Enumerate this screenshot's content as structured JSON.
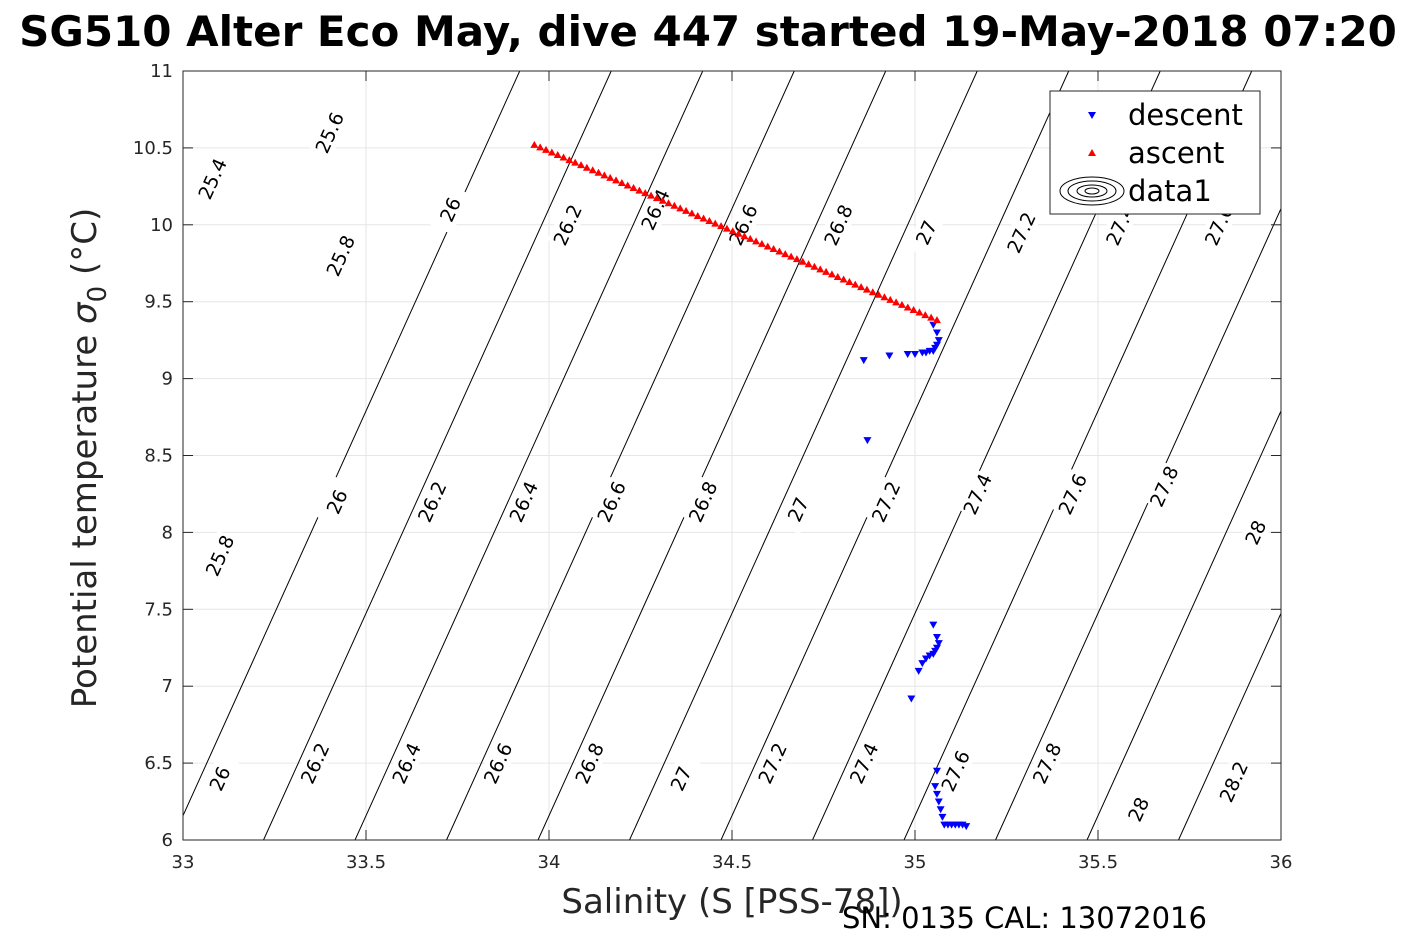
{
  "chart_data": {
    "type": "scatter",
    "title": "SG510 Alter Eco May, dive 447 started 19-May-2018 07:20",
    "xlabel": "Salinity (S [PSS-78])",
    "ylabel_prefix": "Potential temperature ",
    "ylabel_sigma": "σ",
    "ylabel_sub": "0",
    "ylabel_suffix": " (°C)",
    "footer": "SN: 0135  CAL: 13072016",
    "xlim": [
      33,
      36
    ],
    "ylim": [
      6,
      11
    ],
    "xticks": [
      33,
      33.5,
      34,
      34.5,
      35,
      35.5,
      36
    ],
    "xtick_labels": [
      "33",
      "33.5",
      "34",
      "34.5",
      "35",
      "35.5",
      "36"
    ],
    "yticks": [
      6,
      6.5,
      7,
      7.5,
      8,
      8.5,
      9,
      9.5,
      10,
      10.5,
      11
    ],
    "ytick_labels": [
      "6",
      "6.5",
      "7",
      "7.5",
      "8",
      "8.5",
      "9",
      "9.5",
      "10",
      "10.5",
      "11"
    ],
    "grid": true,
    "legend_position": "top-right",
    "legend": [
      {
        "label": "descent",
        "marker": "triangle-down",
        "color": "#0000ff"
      },
      {
        "label": "ascent",
        "marker": "triangle-up",
        "color": "#ff0000"
      },
      {
        "label": "data1",
        "marker": "contour-ellipses",
        "color": "#000000"
      }
    ],
    "series": [
      {
        "name": "descent",
        "marker": "triangle-down",
        "color": "#0000ff",
        "x": [
          35.05,
          35.06,
          35.065,
          35.06,
          35.055,
          35.05,
          35.04,
          35.03,
          35.02,
          35.0,
          34.98,
          34.93,
          34.86,
          34.87,
          35.05,
          35.06,
          35.065,
          35.06,
          35.055,
          35.05,
          35.04,
          35.03,
          35.02,
          35.01,
          34.99,
          35.06,
          35.055,
          35.06,
          35.065,
          35.07,
          35.075,
          35.08,
          35.09,
          35.1,
          35.11,
          35.12,
          35.13,
          35.14
        ],
        "y": [
          9.35,
          9.3,
          9.25,
          9.22,
          9.2,
          9.18,
          9.18,
          9.17,
          9.17,
          9.16,
          9.16,
          9.15,
          9.12,
          8.6,
          7.4,
          7.32,
          7.28,
          7.25,
          7.23,
          7.21,
          7.2,
          7.18,
          7.15,
          7.1,
          6.92,
          6.45,
          6.35,
          6.3,
          6.25,
          6.2,
          6.15,
          6.1,
          6.1,
          6.1,
          6.1,
          6.1,
          6.1,
          6.09
        ]
      },
      {
        "name": "ascent",
        "marker": "triangle-up",
        "color": "#ff0000",
        "x_start": 33.96,
        "y_start": 10.52,
        "x_end": 35.06,
        "y_end": 9.38,
        "n_points": 70
      }
    ],
    "contours": [
      {
        "level": "25.4",
        "x_at_6": 31.22,
        "labels": [
          [
            33.08,
            10.3
          ]
        ]
      },
      {
        "level": "25.6",
        "x_at_6": 31.47,
        "labels": [
          [
            33.4,
            10.6
          ]
        ]
      },
      {
        "level": "25.8",
        "x_at_6": 31.72,
        "labels": [
          [
            33.43,
            9.8
          ],
          [
            33.1,
            7.85
          ]
        ]
      },
      {
        "level": "26",
        "x_at_6": 32.97,
        "labels": [
          [
            33.73,
            10.1
          ],
          [
            33.42,
            8.2
          ],
          [
            33.1,
            6.4
          ]
        ]
      },
      {
        "level": "26.2",
        "x_at_6": 33.22,
        "labels": [
          [
            34.05,
            10.0
          ],
          [
            33.68,
            8.2
          ],
          [
            33.36,
            6.5
          ]
        ]
      },
      {
        "level": "26.4",
        "x_at_6": 33.47,
        "labels": [
          [
            34.29,
            10.1
          ],
          [
            33.93,
            8.2
          ],
          [
            33.61,
            6.5
          ]
        ]
      },
      {
        "level": "26.6",
        "x_at_6": 33.72,
        "labels": [
          [
            34.53,
            10.0
          ],
          [
            34.17,
            8.2
          ],
          [
            33.86,
            6.5
          ]
        ]
      },
      {
        "level": "26.8",
        "x_at_6": 33.97,
        "labels": [
          [
            34.79,
            10.0
          ],
          [
            34.42,
            8.2
          ],
          [
            34.11,
            6.5
          ]
        ]
      },
      {
        "level": "27",
        "x_at_6": 34.22,
        "labels": [
          [
            35.03,
            9.95
          ],
          [
            34.68,
            8.15
          ],
          [
            34.36,
            6.4
          ]
        ]
      },
      {
        "level": "27.2",
        "x_at_6": 34.47,
        "labels": [
          [
            35.29,
            9.95
          ],
          [
            34.92,
            8.2
          ],
          [
            34.61,
            6.5
          ]
        ]
      },
      {
        "level": "27.4",
        "x_at_6": 34.72,
        "labels": [
          [
            35.56,
            10.0
          ],
          [
            35.17,
            8.25
          ],
          [
            34.86,
            6.5
          ]
        ]
      },
      {
        "level": "27.6",
        "x_at_6": 34.97,
        "labels": [
          [
            35.83,
            10.0
          ],
          [
            35.43,
            8.25
          ],
          [
            35.11,
            6.45
          ]
        ]
      },
      {
        "level": "27.8",
        "x_at_6": 35.22,
        "labels": [
          [
            35.68,
            8.3
          ],
          [
            35.36,
            6.5
          ]
        ]
      },
      {
        "level": "28",
        "x_at_6": 35.47,
        "labels": [
          [
            35.93,
            8.0
          ],
          [
            35.61,
            6.2
          ]
        ]
      },
      {
        "level": "28.2",
        "x_at_6": 35.72,
        "labels": [
          [
            35.87,
            6.38
          ]
        ]
      }
    ],
    "contour_slope": 0.19
  }
}
